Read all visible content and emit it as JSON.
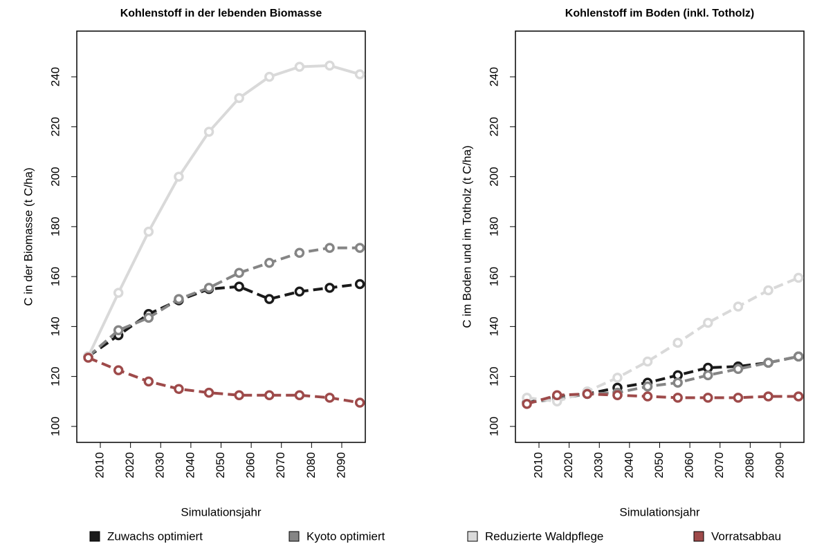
{
  "chart_data": [
    {
      "type": "line",
      "title": "Kohlenstoff in der lebenden Biomasse",
      "x_label": "Simulationsjahr",
      "y_label": "C in der Biomasse (t C/ha)",
      "x": [
        2006,
        2016,
        2026,
        2036,
        2046,
        2056,
        2066,
        2076,
        2086,
        2096
      ],
      "xlim": [
        2002.2,
        2097.8
      ],
      "xticks": [
        2010,
        2020,
        2030,
        2040,
        2050,
        2060,
        2070,
        2080,
        2090
      ],
      "ylim": [
        93.6,
        258.3
      ],
      "yticks": [
        100,
        120,
        140,
        160,
        180,
        200,
        220,
        240
      ],
      "series": [
        {
          "name": "Zuwachs optimiert",
          "color": "#1a1a1a",
          "dashed": true,
          "values": [
            128,
            136.5,
            145,
            150.5,
            155,
            156,
            151,
            154,
            155.5,
            157
          ]
        },
        {
          "name": "Kyoto optimiert",
          "color": "#858585",
          "dashed": true,
          "values": [
            128,
            138.5,
            143.5,
            151,
            155.5,
            161.5,
            165.5,
            169.5,
            171.5,
            171.5
          ]
        },
        {
          "name": "Reduzierte Waldpflege",
          "color": "#d9d9d9",
          "dashed": false,
          "values": [
            128,
            153.5,
            178,
            200,
            218,
            231.5,
            240,
            244,
            244.5,
            241
          ]
        },
        {
          "name": "Vorratsabbau",
          "color": "#9e4a4a",
          "dashed": true,
          "values": [
            127.5,
            122.5,
            118,
            115,
            113.5,
            112.5,
            112.5,
            112.5,
            111.5,
            109.5
          ]
        }
      ]
    },
    {
      "type": "line",
      "title": "Kohlenstoff im Boden (inkl. Totholz)",
      "x_label": "Simulationsjahr",
      "y_label": "C im Boden und im Totholz (t C/ha)",
      "x": [
        2006,
        2016,
        2026,
        2036,
        2046,
        2056,
        2066,
        2076,
        2086,
        2096
      ],
      "xlim": [
        2002.2,
        2097.8
      ],
      "xticks": [
        2010,
        2020,
        2030,
        2040,
        2050,
        2060,
        2070,
        2080,
        2090
      ],
      "ylim": [
        93.6,
        258.3
      ],
      "yticks": [
        100,
        120,
        140,
        160,
        180,
        200,
        220,
        240
      ],
      "series": [
        {
          "color": "#1a1a1a",
          "dashed": true,
          "values": [
            109.5,
            112,
            113,
            115.5,
            117.5,
            120.5,
            123.5,
            124,
            125.5,
            128
          ]
        },
        {
          "color": "#858585",
          "dashed": true,
          "values": [
            109.5,
            111,
            113,
            113.5,
            116,
            117.5,
            120.5,
            123,
            125.5,
            128
          ]
        },
        {
          "color": "#d9d9d9",
          "dashed": true,
          "values": [
            111.5,
            110,
            114,
            119.5,
            126,
            133.5,
            141.5,
            148,
            154.5,
            159.5
          ]
        },
        {
          "color": "#9e4a4a",
          "dashed": true,
          "values": [
            109,
            112.5,
            113,
            112.5,
            112,
            111.5,
            111.5,
            111.5,
            112,
            112
          ]
        }
      ]
    }
  ]
}
